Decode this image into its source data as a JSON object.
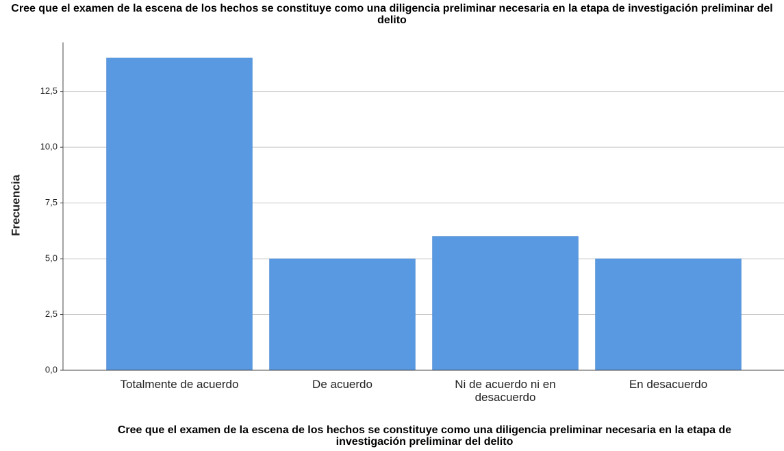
{
  "chart_data": {
    "type": "bar",
    "title": "Cree que el examen de la escena de los hechos se constituye como una diligencia preliminar necesaria en la etapa de investigación preliminar del delito",
    "x_label": "Cree que el examen de la escena de los hechos se constituye como una diligencia preliminar necesaria en la etapa de investigación preliminar del delito",
    "y_label": "Frecuencia",
    "categories": [
      "Totalmente de acuerdo",
      "De acuerdo",
      "Ni de acuerdo ni en desacuerdo",
      "En desacuerdo"
    ],
    "values": [
      14,
      5,
      6,
      5
    ],
    "color": "#5899e2",
    "ylim": [
      0,
      14.7
    ],
    "yticks": [
      {
        "value": 0,
        "label": "0,0"
      },
      {
        "value": 2.5,
        "label": "2,5"
      },
      {
        "value": 5,
        "label": "5,0"
      },
      {
        "value": 7.5,
        "label": "7,5"
      },
      {
        "value": 10,
        "label": "10,0"
      },
      {
        "value": 12.5,
        "label": "12,5"
      }
    ],
    "grid": true
  }
}
